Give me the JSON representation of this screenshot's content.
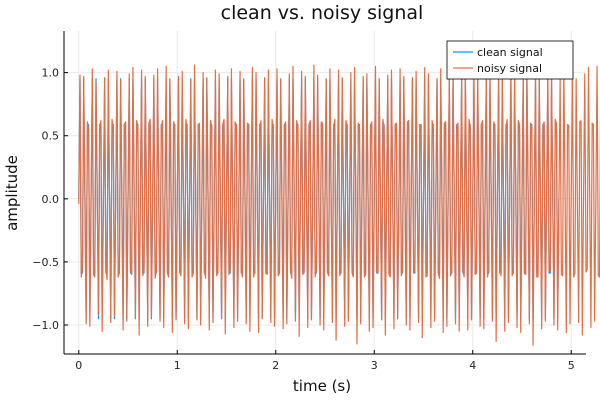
{
  "chart_data": {
    "type": "line",
    "title": "clean vs. noisy signal",
    "xlabel": "time (s)",
    "ylabel": "amplitude",
    "xlim": [
      -0.15,
      5.15
    ],
    "ylim": [
      -1.23,
      1.33
    ],
    "xticks": [
      0,
      1,
      2,
      3,
      4,
      5
    ],
    "xtick_labels": [
      "0",
      "1",
      "2",
      "3",
      "4",
      "5"
    ],
    "yticks": [
      -1.0,
      -0.5,
      0.0,
      0.5,
      1.0
    ],
    "ytick_labels": [
      "−1.0",
      "−0.5",
      "0.0",
      "0.5",
      "1.0"
    ],
    "grid": true,
    "legend_position": "top-right",
    "series": [
      {
        "name": "clean signal",
        "color": "#009AFA",
        "x_step": 0.0125,
        "y": [
          0.0,
          0.951,
          -0.588,
          -0.588,
          0.951,
          0.0,
          -0.951,
          0.588,
          0.588,
          -0.951,
          0.0,
          0.951,
          -0.588,
          -0.588,
          0.951,
          0.0,
          -0.951,
          0.588,
          0.588,
          -0.951,
          0.0,
          0.951,
          -0.588,
          -0.588,
          0.951,
          0.0,
          -0.951,
          0.588,
          0.588,
          -0.951,
          0.0,
          0.951,
          -0.588,
          -0.588,
          0.951,
          0.0,
          -0.951,
          0.588,
          0.588,
          -0.951,
          0.0,
          0.951,
          -0.588,
          -0.588,
          0.951,
          0.0,
          -0.951,
          0.588,
          0.588,
          -0.951,
          0.0,
          0.951,
          -0.588,
          -0.588,
          0.951,
          0.0,
          -0.951,
          0.588,
          0.588,
          -0.951,
          0.0,
          0.951,
          -0.588,
          -0.588,
          0.951,
          0.0,
          -0.951,
          0.588,
          0.588,
          -0.951,
          0.0,
          0.951,
          -0.588,
          -0.588,
          0.951,
          0.0,
          -0.951,
          0.588,
          0.588,
          -0.951,
          0.0,
          0.951,
          -0.588,
          -0.588,
          0.951,
          0.0,
          -0.951,
          0.588,
          0.588,
          -0.951,
          0.0,
          0.951,
          -0.588,
          -0.588,
          0.951,
          0.0,
          -0.951,
          0.588,
          0.588,
          -0.951,
          0.0,
          0.951,
          -0.588,
          -0.588,
          0.951,
          0.0,
          -0.951,
          0.588,
          0.588,
          -0.951,
          0.0,
          0.951,
          -0.588,
          -0.588,
          0.951,
          0.0,
          -0.951,
          0.588,
          0.588,
          -0.951,
          0.0,
          0.951,
          -0.588,
          -0.588,
          0.951,
          0.0,
          -0.951,
          0.588,
          0.588,
          -0.951,
          0.0,
          0.951,
          -0.588,
          -0.588,
          0.951,
          0.0,
          -0.951,
          0.588,
          0.588,
          -0.951,
          0.0,
          0.951,
          -0.588,
          -0.588,
          0.951,
          0.0,
          -0.951,
          0.588,
          0.588,
          -0.951,
          0.0,
          0.951,
          -0.588,
          -0.588,
          0.951,
          0.0,
          -0.951,
          0.588,
          0.588,
          -0.951,
          0.0,
          0.951,
          -0.588,
          -0.588,
          0.951,
          0.0,
          -0.951,
          0.588,
          0.588,
          -0.951,
          0.0,
          0.951,
          -0.588,
          -0.588,
          0.951,
          0.0,
          -0.951,
          0.588,
          0.588,
          -0.951,
          0.0,
          0.951,
          -0.588,
          -0.588,
          0.951,
          0.0,
          -0.951,
          0.588,
          0.588,
          -0.951,
          0.0,
          0.951,
          -0.588,
          -0.588,
          0.951,
          0.0,
          -0.951,
          0.588,
          0.588,
          -0.951,
          0.0,
          0.951,
          -0.588,
          -0.588,
          0.951,
          0.0,
          -0.951,
          0.588,
          0.588,
          -0.951,
          0.0,
          0.951,
          -0.588,
          -0.588,
          0.951,
          0.0,
          -0.951,
          0.588,
          0.588,
          -0.951,
          0.0,
          0.951,
          -0.588,
          -0.588,
          0.951,
          0.0,
          -0.951,
          0.588,
          0.588,
          -0.951,
          0.0,
          0.951,
          -0.588,
          -0.588,
          0.951,
          0.0,
          -0.951,
          0.588,
          0.588,
          -0.951,
          0.0,
          0.951,
          -0.588,
          -0.588,
          0.951,
          0.0,
          -0.951,
          0.588,
          0.588,
          -0.951,
          0.0,
          0.951,
          -0.588,
          -0.588,
          0.951,
          0.0,
          -0.951,
          0.588,
          0.588,
          -0.951,
          0.0,
          0.951,
          -0.588,
          -0.588,
          0.951,
          0.0,
          -0.951,
          0.588,
          0.588,
          -0.951,
          0.0,
          0.951,
          -0.588,
          -0.588,
          0.951,
          0.0,
          -0.951,
          0.588,
          0.588,
          -0.951,
          0.0,
          0.951,
          -0.588,
          -0.588,
          0.951,
          0.0,
          -0.951,
          0.588,
          0.588,
          -0.951,
          0.0,
          0.951,
          -0.588,
          -0.588,
          0.951,
          0.0,
          -0.951,
          0.588,
          0.588,
          -0.951,
          0.0,
          0.951,
          -0.588,
          -0.588,
          0.951,
          0.0,
          -0.951,
          0.588,
          0.588,
          -0.951,
          0.0,
          0.951,
          -0.588,
          -0.588,
          0.951,
          0.0,
          -0.951,
          0.588,
          0.588,
          -0.951,
          0.0,
          0.951,
          -0.588,
          -0.588,
          0.951,
          0.0,
          -0.951,
          0.588,
          0.588,
          -0.951,
          0.0,
          0.951,
          -0.588,
          -0.588,
          0.951,
          0.0,
          -0.951,
          0.588,
          0.588,
          -0.951,
          0.0,
          0.951,
          -0.588,
          -0.588,
          0.951,
          0.0,
          -0.951,
          0.588,
          0.588,
          -0.951,
          0.0,
          0.951,
          -0.588,
          -0.588,
          0.951,
          0.0,
          -0.951,
          0.588,
          0.588,
          -0.951,
          0.0,
          0.951,
          -0.588,
          -0.588,
          0.951,
          0.0,
          -0.951,
          0.588,
          0.588,
          -0.951,
          0.0,
          0.951,
          -0.588,
          -0.588,
          0.951,
          0.0,
          -0.951,
          0.588,
          0.588,
          -0.951,
          0.0,
          0.951,
          -0.588,
          -0.588,
          0.951,
          0.0,
          -0.951,
          0.588,
          0.588,
          -0.951,
          0.0
        ]
      },
      {
        "name": "noisy signal",
        "color": "#E26F46",
        "x_step": 0.0125,
        "y": [
          -0.04,
          0.98,
          -0.62,
          -0.55,
          0.97,
          0.03,
          -0.99,
          0.61,
          0.55,
          -1.01,
          0.02,
          1.03,
          -0.6,
          -0.62,
          0.93,
          0.05,
          -0.92,
          0.57,
          0.62,
          -1.05,
          -0.03,
          0.96,
          -0.55,
          -0.64,
          1.02,
          0.01,
          -0.98,
          0.63,
          0.56,
          -0.93,
          0.04,
          1.01,
          -0.62,
          -0.58,
          0.94,
          -0.02,
          -1.04,
          0.59,
          0.61,
          -0.97,
          0.0,
          0.99,
          -0.57,
          -0.6,
          1.04,
          0.03,
          -0.95,
          0.62,
          0.57,
          -1.08,
          -0.05,
          1.02,
          -0.61,
          -0.56,
          0.97,
          0.02,
          -1.01,
          0.6,
          0.63,
          -0.94,
          0.03,
          0.98,
          -0.63,
          -0.57,
          1.03,
          -0.04,
          -0.97,
          0.56,
          0.62,
          -1.02,
          0.01,
          1.05,
          -0.59,
          -0.62,
          0.95,
          0.04,
          -1.06,
          0.61,
          0.58,
          -0.96,
          -0.02,
          0.97,
          -0.58,
          -0.61,
          1.01,
          0.03,
          -0.99,
          0.63,
          0.55,
          -1.03,
          0.05,
          0.94,
          -0.62,
          -0.59,
          1.06,
          -0.01,
          -0.96,
          0.58,
          0.6,
          -1.0,
          0.02,
          1.0,
          -0.57,
          -0.63,
          0.96,
          0.04,
          -1.04,
          0.62,
          0.57,
          -0.98,
          -0.03,
          1.02,
          -0.61,
          -0.58,
          0.99,
          0.01,
          -0.95,
          0.59,
          0.63,
          -1.07,
          0.05,
          0.97,
          -0.6,
          -0.56,
          1.03,
          -0.02,
          -1.02,
          0.61,
          0.58,
          -0.97,
          0.03,
          1.01,
          -0.58,
          -0.62,
          0.94,
          0.04,
          -0.99,
          0.6,
          0.59,
          -1.05,
          -0.04,
          1.04,
          -0.62,
          -0.57,
          1.0,
          0.02,
          -1.06,
          0.57,
          0.62,
          -0.95,
          0.01,
          0.96,
          -0.59,
          -0.6,
          1.02,
          -0.03,
          -0.98,
          0.63,
          0.56,
          -1.01,
          0.04,
          1.03,
          -0.61,
          -0.59,
          0.95,
          0.02,
          -1.03,
          0.58,
          0.61,
          -0.99,
          -0.02,
          0.99,
          -0.57,
          -0.63,
          1.05,
          0.05,
          -0.97,
          0.62,
          0.57,
          -1.09,
          0.0,
          1.01,
          -0.6,
          -0.58,
          0.97,
          0.03,
          -1.02,
          0.59,
          0.62,
          -0.96,
          -0.04,
          1.06,
          -0.62,
          -0.56,
          0.98,
          0.01,
          -1.0,
          0.61,
          0.6,
          -1.04,
          0.03,
          0.95,
          -0.58,
          -0.61,
          1.03,
          -0.02,
          -0.98,
          0.57,
          0.63,
          -1.12,
          0.04,
          1.02,
          -0.61,
          -0.57,
          0.96,
          0.02,
          -1.01,
          0.62,
          0.58,
          -0.97,
          -0.03,
          1.0,
          -0.59,
          -0.62,
          1.04,
          0.05,
          -1.15,
          0.6,
          0.56,
          -0.99,
          0.01,
          0.97,
          -0.62,
          -0.6,
          0.99,
          -0.04,
          -1.05,
          0.58,
          0.61,
          -1.02,
          0.03,
          1.05,
          -0.57,
          -0.59,
          0.95,
          0.02,
          -0.96,
          0.63,
          0.57,
          -1.08,
          -0.01,
          0.98,
          -0.6,
          -0.62,
          1.02,
          0.04,
          -1.03,
          0.59,
          0.6,
          -0.95,
          -0.02,
          1.03,
          -0.61,
          -0.57,
          0.97,
          0.03,
          -1.0,
          0.61,
          0.62,
          -1.04,
          0.05,
          0.96,
          -0.58,
          -0.58,
          1.01,
          -0.03,
          -0.98,
          0.57,
          0.59,
          -1.1,
          0.02,
          1.04,
          -0.62,
          -0.61,
          0.99,
          0.01,
          -1.02,
          0.62,
          0.56,
          -0.97,
          -0.04,
          0.95,
          -0.59,
          -0.63,
          1.03,
          0.04,
          -1.06,
          0.6,
          0.61,
          -1.01,
          0.02,
          1.02,
          -0.61,
          -0.57,
          0.96,
          -0.01,
          -0.99,
          0.58,
          0.6,
          -1.05,
          0.03,
          1.0,
          -0.57,
          -0.62,
          1.02,
          0.05,
          -1.04,
          0.63,
          0.57,
          -0.96,
          -0.02,
          0.97,
          -0.6,
          -0.59,
          1.05,
          0.02,
          -1.01,
          0.59,
          0.62,
          -1.03,
          -0.03,
          1.03,
          -0.62,
          -0.56,
          0.98,
          0.04,
          -0.97,
          0.61,
          0.58,
          -1.13,
          0.01,
          0.99,
          -0.58,
          -0.61,
          1.0,
          -0.04,
          -1.05,
          0.57,
          0.63,
          -0.98,
          0.03,
          1.06,
          -0.61,
          -0.58,
          0.94,
          0.02,
          -1.02,
          0.62,
          0.59,
          -1.06,
          -0.01,
          0.98,
          -0.59,
          -0.6,
          1.02,
          0.05,
          -0.99,
          0.6,
          0.56,
          -1.16,
          0.03,
          1.01,
          -0.62,
          -0.62,
          0.97,
          -0.02,
          -1.03,
          0.58,
          0.61,
          -0.97,
          0.04,
          1.04,
          -0.57,
          -0.57,
          1.0,
          0.01,
          -1.0,
          0.63,
          0.6,
          -1.04,
          -0.03,
          0.96,
          -0.6,
          -0.61,
          1.03,
          0.02,
          -1.06,
          0.59,
          0.58,
          -0.99,
          0.05,
          1.02,
          -0.62,
          -0.59,
          0.95,
          -0.04,
          -0.98,
          0.61,
          0.62,
          -1.08,
          0.02,
          0.99,
          -0.58,
          -0.56,
          1.04,
          0.03,
          -1.02,
          0.6,
          0.59,
          -0.97,
          -0.02,
          1.05,
          -0.61,
          -0.62,
          0.98,
          0.01,
          -1.05,
          0.57,
          0.61,
          -1.01,
          0.04,
          0.97,
          -0.59,
          -0.6,
          1.01,
          -0.03,
          -0.99,
          0.62,
          0.57,
          -1.06,
          0.0
        ]
      }
    ]
  }
}
